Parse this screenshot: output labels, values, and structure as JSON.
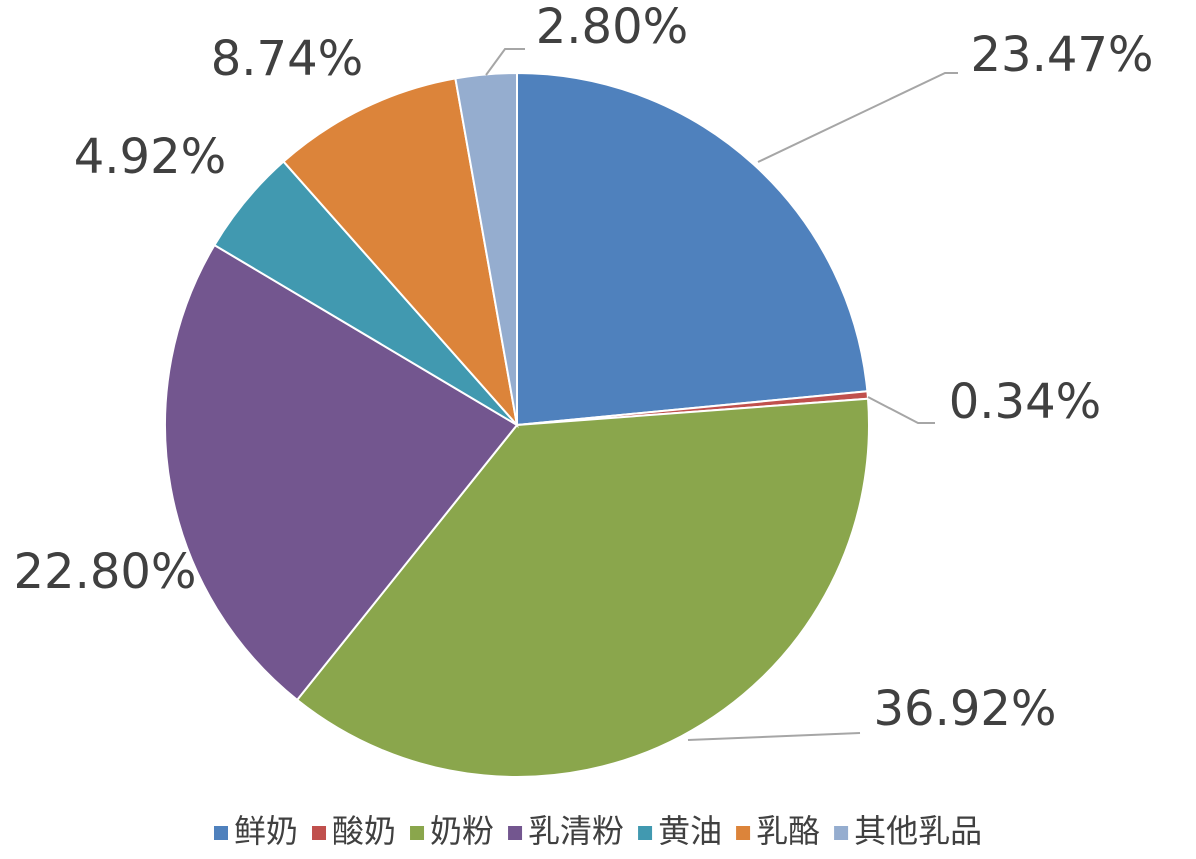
{
  "chart_data": {
    "type": "pie",
    "categories": [
      "鲜奶",
      "酸奶",
      "奶粉",
      "乳清粉",
      "黄油",
      "乳酪",
      "其他乳品"
    ],
    "values": [
      23.47,
      0.34,
      36.92,
      22.8,
      4.92,
      8.74,
      2.8
    ],
    "value_labels": [
      "23.47%",
      "0.34%",
      "36.92%",
      "22.80%",
      "4.92%",
      "8.74%",
      "2.80%"
    ],
    "colors": [
      "#4f81bd",
      "#c0504d",
      "#8aa64c",
      "#73568f",
      "#4199b0",
      "#dc843a",
      "#95adcf"
    ],
    "legend": "bottom"
  }
}
